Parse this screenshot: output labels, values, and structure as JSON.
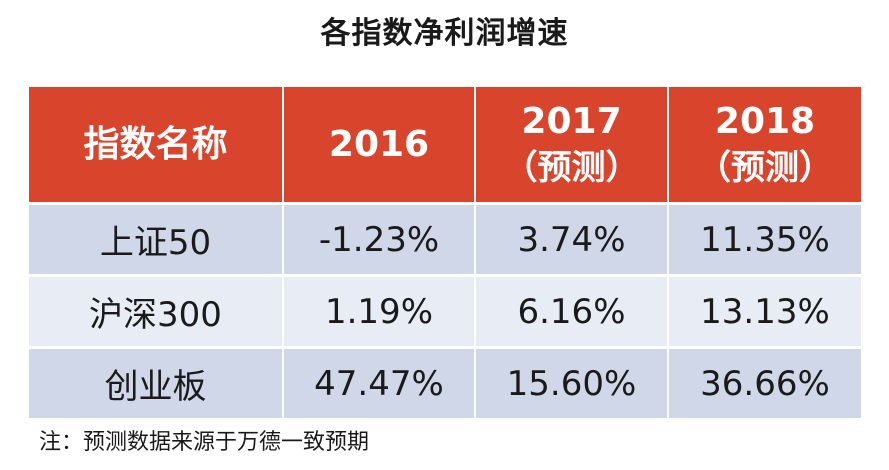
{
  "chart_data": {
    "type": "table",
    "title": "各指数净利润增速",
    "columns": [
      {
        "label": "指数名称",
        "sub": ""
      },
      {
        "label": "2016",
        "sub": ""
      },
      {
        "label": "2017",
        "sub": "（预测）"
      },
      {
        "label": "2018",
        "sub": "（预测）"
      }
    ],
    "rows": [
      {
        "name": "上证50",
        "values": [
          "-1.23%",
          "3.74%",
          "11.35%"
        ]
      },
      {
        "name": "沪深300",
        "values": [
          "1.19%",
          "6.16%",
          "13.13%"
        ]
      },
      {
        "name": "创业板",
        "values": [
          "47.47%",
          "15.60%",
          "36.66%"
        ]
      }
    ],
    "note": "注：预测数据来源于万德一致预期",
    "colors": {
      "header_bg": "#d9442c",
      "row_dark": "#cfd7e8",
      "row_light": "#e8ecf5"
    }
  }
}
